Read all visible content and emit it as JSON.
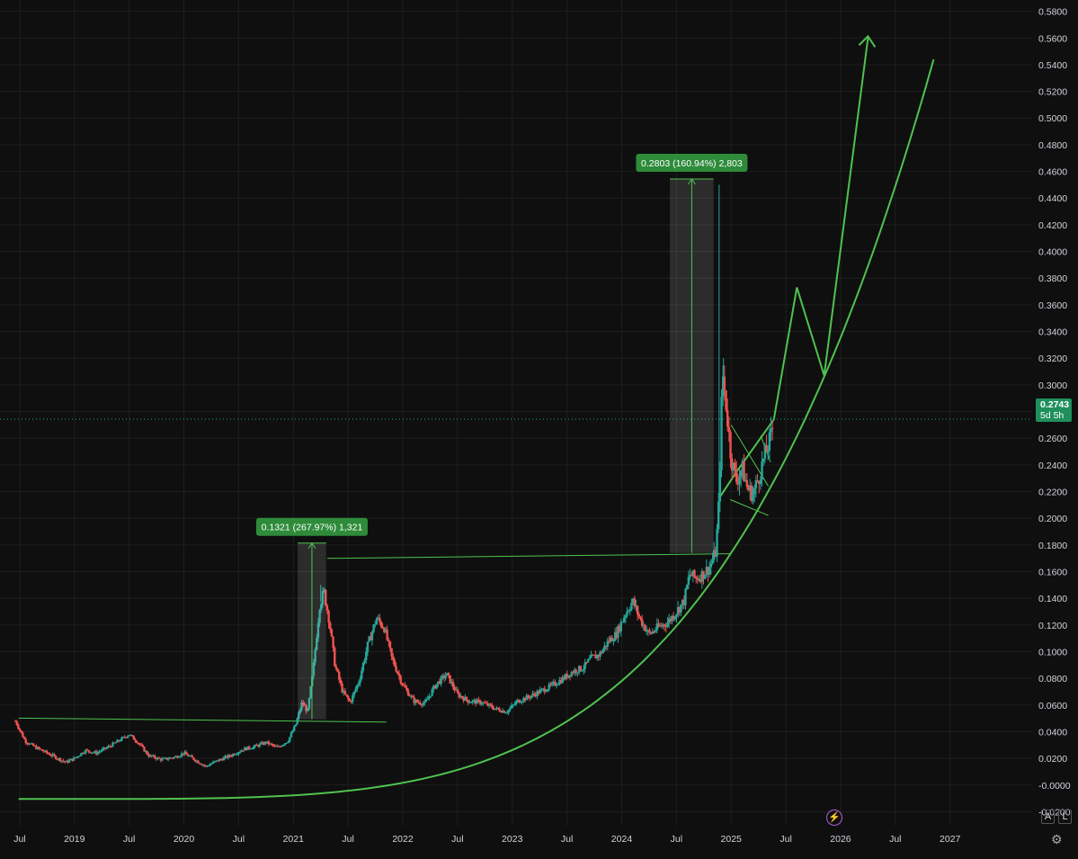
{
  "chart_data": {
    "type": "candlestick",
    "y_ticks": [
      "0.5800",
      "0.5600",
      "0.5400",
      "0.5200",
      "0.5000",
      "0.4800",
      "0.4600",
      "0.4400",
      "0.4200",
      "0.4000",
      "0.3800",
      "0.3600",
      "0.3400",
      "0.3200",
      "0.3000",
      "0.2800",
      "0.2600",
      "0.2400",
      "0.2200",
      "0.2000",
      "0.1800",
      "0.1600",
      "0.1400",
      "0.1200",
      "0.1000",
      "0.0800",
      "0.0600",
      "0.0400",
      "0.0200",
      "-0.0000",
      "-0.0200"
    ],
    "x_ticks": [
      "Jul",
      "2019",
      "Jul",
      "2020",
      "Jul",
      "2021",
      "Jul",
      "2022",
      "Jul",
      "2023",
      "Jul",
      "2024",
      "Jul",
      "2025",
      "Jul",
      "2026",
      "Jul",
      "2027"
    ],
    "x_tick_dates": [
      2018.5,
      2019.0,
      2019.5,
      2020.0,
      2020.5,
      2021.0,
      2021.5,
      2022.0,
      2022.5,
      2023.0,
      2023.5,
      2024.0,
      2024.5,
      2025.0,
      2025.5,
      2026.0,
      2026.5,
      2027.0
    ],
    "ylim": [
      -0.0305,
      0.5885
    ],
    "xlim": [
      2018.32,
      2027.75
    ],
    "up_color": "#26a69a",
    "down_color": "#ef5350",
    "price_path": [
      [
        2018.46,
        0.048
      ],
      [
        2018.55,
        0.033
      ],
      [
        2018.65,
        0.028
      ],
      [
        2018.8,
        0.022
      ],
      [
        2018.92,
        0.017
      ],
      [
        2019.0,
        0.02
      ],
      [
        2019.1,
        0.026
      ],
      [
        2019.2,
        0.024
      ],
      [
        2019.32,
        0.029
      ],
      [
        2019.42,
        0.034
      ],
      [
        2019.5,
        0.038
      ],
      [
        2019.58,
        0.032
      ],
      [
        2019.68,
        0.022
      ],
      [
        2019.8,
        0.019
      ],
      [
        2019.92,
        0.021
      ],
      [
        2020.0,
        0.024
      ],
      [
        2020.1,
        0.019
      ],
      [
        2020.2,
        0.014
      ],
      [
        2020.3,
        0.018
      ],
      [
        2020.42,
        0.022
      ],
      [
        2020.55,
        0.027
      ],
      [
        2020.65,
        0.029
      ],
      [
        2020.75,
        0.032
      ],
      [
        2020.85,
        0.028
      ],
      [
        2020.95,
        0.033
      ],
      [
        2021.02,
        0.045
      ],
      [
        2021.08,
        0.062
      ],
      [
        2021.13,
        0.055
      ],
      [
        2021.18,
        0.085
      ],
      [
        2021.24,
        0.135
      ],
      [
        2021.28,
        0.145
      ],
      [
        2021.33,
        0.122
      ],
      [
        2021.38,
        0.09
      ],
      [
        2021.45,
        0.07
      ],
      [
        2021.52,
        0.062
      ],
      [
        2021.6,
        0.078
      ],
      [
        2021.68,
        0.105
      ],
      [
        2021.76,
        0.125
      ],
      [
        2021.83,
        0.118
      ],
      [
        2021.9,
        0.095
      ],
      [
        2022.0,
        0.075
      ],
      [
        2022.1,
        0.063
      ],
      [
        2022.2,
        0.061
      ],
      [
        2022.3,
        0.075
      ],
      [
        2022.4,
        0.083
      ],
      [
        2022.5,
        0.068
      ],
      [
        2022.6,
        0.063
      ],
      [
        2022.72,
        0.062
      ],
      [
        2022.85,
        0.057
      ],
      [
        2022.95,
        0.055
      ],
      [
        2023.05,
        0.063
      ],
      [
        2023.15,
        0.066
      ],
      [
        2023.25,
        0.07
      ],
      [
        2023.35,
        0.074
      ],
      [
        2023.45,
        0.079
      ],
      [
        2023.55,
        0.085
      ],
      [
        2023.65,
        0.088
      ],
      [
        2023.72,
        0.095
      ],
      [
        2023.8,
        0.098
      ],
      [
        2023.88,
        0.108
      ],
      [
        2023.95,
        0.113
      ],
      [
        2024.03,
        0.128
      ],
      [
        2024.1,
        0.138
      ],
      [
        2024.17,
        0.124
      ],
      [
        2024.25,
        0.113
      ],
      [
        2024.33,
        0.118
      ],
      [
        2024.42,
        0.122
      ],
      [
        2024.5,
        0.13
      ],
      [
        2024.57,
        0.138
      ],
      [
        2024.62,
        0.158
      ],
      [
        2024.68,
        0.155
      ],
      [
        2024.74,
        0.158
      ],
      [
        2024.8,
        0.163
      ],
      [
        2024.86,
        0.175
      ],
      [
        2024.89,
        0.215
      ],
      [
        2024.92,
        0.31
      ],
      [
        2024.96,
        0.28
      ],
      [
        2025.0,
        0.245
      ],
      [
        2025.05,
        0.228
      ],
      [
        2025.1,
        0.238
      ],
      [
        2025.15,
        0.222
      ],
      [
        2025.2,
        0.218
      ],
      [
        2025.25,
        0.23
      ],
      [
        2025.3,
        0.245
      ],
      [
        2025.36,
        0.26
      ],
      [
        2025.39,
        0.274
      ]
    ],
    "spikes": [
      [
        2021.25,
        0.15
      ],
      [
        2024.89,
        0.45
      ],
      [
        2024.93,
        0.32
      ]
    ],
    "annotations": [
      {
        "label": "0.1321 (267.97%) 1,321",
        "x0": 2021.04,
        "x1": 2021.3,
        "y0": 0.0493,
        "y1": 0.1814
      },
      {
        "label": "0.2803 (160.94%) 2,803",
        "x0": 2024.44,
        "x1": 2024.84,
        "y0": 0.174,
        "y1": 0.4543
      }
    ],
    "projection_path": [
      [
        2024.89,
        0.215
      ],
      [
        2025.05,
        0.235
      ],
      [
        2025.39,
        0.274
      ],
      [
        2025.6,
        0.373
      ],
      [
        2025.85,
        0.307
      ],
      [
        2026.25,
        0.56
      ]
    ],
    "support_curve": {
      "x0": 2018.49,
      "x1": 2026.85,
      "y_start": -0.0105,
      "y_end": 0.544
    },
    "last_price": "0.2743",
    "last_price_value": 0.2743,
    "countdown": "5d 5h"
  },
  "colors": {
    "background": "#0f0f0f",
    "grid": "#1f1f1f",
    "drawing": "#4fc24f",
    "label_bg": "#2e8b3a"
  },
  "controls": {
    "auto_label": "A",
    "log_label": "L"
  }
}
